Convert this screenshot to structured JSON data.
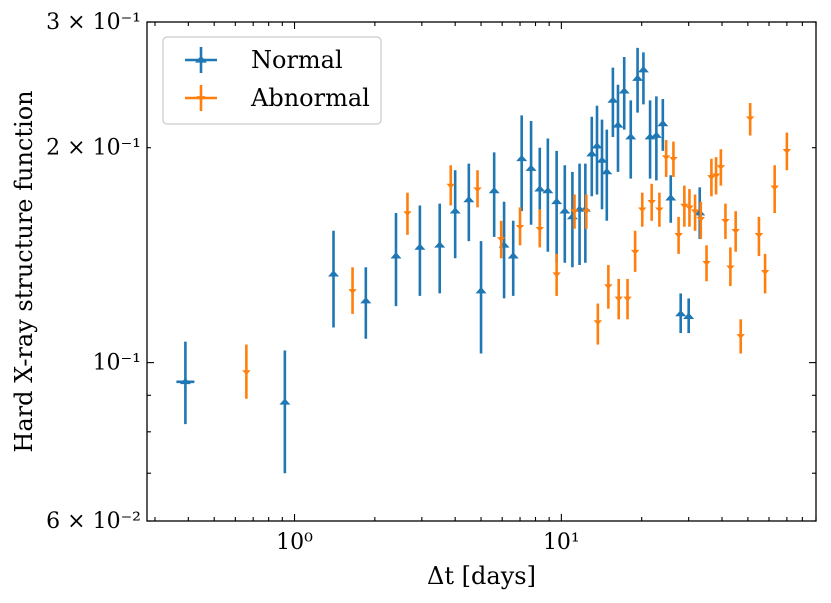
{
  "chart_data": {
    "type": "scatter",
    "title": "",
    "xlabel": "Δt [days]",
    "ylabel": "Hard X-ray structure function",
    "xscale": "log",
    "yscale": "log",
    "xlim": [
      0.28,
      90
    ],
    "ylim": [
      0.06,
      0.3
    ],
    "x_ticks": [
      {
        "value": 1,
        "label": "10⁰"
      },
      {
        "value": 10,
        "label": "10¹"
      }
    ],
    "y_ticks": [
      {
        "value": 0.06,
        "label": "6 × 10⁻²"
      },
      {
        "value": 0.1,
        "label": "10⁻¹"
      },
      {
        "value": 0.2,
        "label": "2 × 10⁻¹"
      },
      {
        "value": 0.3,
        "label": "3 × 10⁻¹"
      }
    ],
    "grid": false,
    "legend_position": "top-left",
    "series": [
      {
        "name": "Normal",
        "color": "#1f77b4",
        "marker": "triangle-up",
        "points": [
          {
            "x": 0.39,
            "y": 0.094,
            "ylo": 0.082,
            "yhi": 0.107
          },
          {
            "x": 0.92,
            "y": 0.088,
            "ylo": 0.07,
            "yhi": 0.104
          },
          {
            "x": 1.4,
            "y": 0.133,
            "ylo": 0.112,
            "yhi": 0.153
          },
          {
            "x": 1.85,
            "y": 0.122,
            "ylo": 0.108,
            "yhi": 0.136
          },
          {
            "x": 2.4,
            "y": 0.141,
            "ylo": 0.12,
            "yhi": 0.162
          },
          {
            "x": 2.95,
            "y": 0.145,
            "ylo": 0.124,
            "yhi": 0.166
          },
          {
            "x": 3.5,
            "y": 0.146,
            "ylo": 0.125,
            "yhi": 0.167
          },
          {
            "x": 4.0,
            "y": 0.163,
            "ylo": 0.14,
            "yhi": 0.186
          },
          {
            "x": 4.5,
            "y": 0.169,
            "ylo": 0.148,
            "yhi": 0.19
          },
          {
            "x": 5.0,
            "y": 0.126,
            "ylo": 0.103,
            "yhi": 0.148
          },
          {
            "x": 5.6,
            "y": 0.174,
            "ylo": 0.15,
            "yhi": 0.197
          },
          {
            "x": 6.1,
            "y": 0.146,
            "ylo": 0.123,
            "yhi": 0.168
          },
          {
            "x": 6.6,
            "y": 0.141,
            "ylo": 0.124,
            "yhi": 0.158
          },
          {
            "x": 7.1,
            "y": 0.193,
            "ylo": 0.163,
            "yhi": 0.222
          },
          {
            "x": 7.7,
            "y": 0.187,
            "ylo": 0.156,
            "yhi": 0.218
          },
          {
            "x": 8.3,
            "y": 0.175,
            "ylo": 0.15,
            "yhi": 0.2
          },
          {
            "x": 8.9,
            "y": 0.174,
            "ylo": 0.143,
            "yhi": 0.206
          },
          {
            "x": 9.6,
            "y": 0.168,
            "ylo": 0.138,
            "yhi": 0.198
          },
          {
            "x": 10.3,
            "y": 0.163,
            "ylo": 0.138,
            "yhi": 0.189
          },
          {
            "x": 11.0,
            "y": 0.16,
            "ylo": 0.136,
            "yhi": 0.185
          },
          {
            "x": 11.7,
            "y": 0.164,
            "ylo": 0.137,
            "yhi": 0.19
          },
          {
            "x": 12.3,
            "y": 0.164,
            "ylo": 0.138,
            "yhi": 0.19
          },
          {
            "x": 13.0,
            "y": 0.196,
            "ylo": 0.171,
            "yhi": 0.221
          },
          {
            "x": 13.6,
            "y": 0.201,
            "ylo": 0.172,
            "yhi": 0.229
          },
          {
            "x": 14.2,
            "y": 0.192,
            "ylo": 0.164,
            "yhi": 0.219
          },
          {
            "x": 14.8,
            "y": 0.185,
            "ylo": 0.158,
            "yhi": 0.212
          },
          {
            "x": 15.6,
            "y": 0.233,
            "ylo": 0.207,
            "yhi": 0.259
          },
          {
            "x": 16.3,
            "y": 0.215,
            "ylo": 0.185,
            "yhi": 0.245
          },
          {
            "x": 17.2,
            "y": 0.24,
            "ylo": 0.212,
            "yhi": 0.268
          },
          {
            "x": 18.2,
            "y": 0.207,
            "ylo": 0.181,
            "yhi": 0.233
          },
          {
            "x": 19.3,
            "y": 0.25,
            "ylo": 0.224,
            "yhi": 0.276
          },
          {
            "x": 20.3,
            "y": 0.257,
            "ylo": 0.23,
            "yhi": 0.272
          },
          {
            "x": 21.5,
            "y": 0.207,
            "ylo": 0.181,
            "yhi": 0.233
          },
          {
            "x": 22.7,
            "y": 0.208,
            "ylo": 0.18,
            "yhi": 0.236
          },
          {
            "x": 24.0,
            "y": 0.216,
            "ylo": 0.198,
            "yhi": 0.234
          },
          {
            "x": 25.7,
            "y": 0.17,
            "ylo": 0.157,
            "yhi": 0.183
          },
          {
            "x": 28.0,
            "y": 0.117,
            "ylo": 0.11,
            "yhi": 0.125
          },
          {
            "x": 30.0,
            "y": 0.116,
            "ylo": 0.11,
            "yhi": 0.123
          },
          {
            "x": 33.0,
            "y": 0.162,
            "ylo": 0.149,
            "yhi": 0.176
          }
        ]
      },
      {
        "name": "Abnormal",
        "color": "#ff7f0e",
        "marker": "triangle-down",
        "points": [
          {
            "x": 0.66,
            "y": 0.097,
            "ylo": 0.089,
            "yhi": 0.106
          },
          {
            "x": 1.65,
            "y": 0.126,
            "ylo": 0.117,
            "yhi": 0.136
          },
          {
            "x": 2.65,
            "y": 0.162,
            "ylo": 0.151,
            "yhi": 0.173
          },
          {
            "x": 3.85,
            "y": 0.177,
            "ylo": 0.166,
            "yhi": 0.189
          },
          {
            "x": 4.85,
            "y": 0.175,
            "ylo": 0.165,
            "yhi": 0.186
          },
          {
            "x": 5.95,
            "y": 0.149,
            "ylo": 0.14,
            "yhi": 0.158
          },
          {
            "x": 7.0,
            "y": 0.155,
            "ylo": 0.146,
            "yhi": 0.165
          },
          {
            "x": 8.3,
            "y": 0.154,
            "ylo": 0.145,
            "yhi": 0.164
          },
          {
            "x": 9.6,
            "y": 0.133,
            "ylo": 0.124,
            "yhi": 0.142
          },
          {
            "x": 11.2,
            "y": 0.163,
            "ylo": 0.154,
            "yhi": 0.172
          },
          {
            "x": 12.4,
            "y": 0.163,
            "ylo": 0.154,
            "yhi": 0.172
          },
          {
            "x": 13.7,
            "y": 0.114,
            "ylo": 0.106,
            "yhi": 0.121
          },
          {
            "x": 15.0,
            "y": 0.128,
            "ylo": 0.119,
            "yhi": 0.137
          },
          {
            "x": 16.4,
            "y": 0.123,
            "ylo": 0.115,
            "yhi": 0.131
          },
          {
            "x": 17.7,
            "y": 0.123,
            "ylo": 0.115,
            "yhi": 0.131
          },
          {
            "x": 18.9,
            "y": 0.143,
            "ylo": 0.134,
            "yhi": 0.153
          },
          {
            "x": 20.1,
            "y": 0.164,
            "ylo": 0.155,
            "yhi": 0.173
          },
          {
            "x": 21.8,
            "y": 0.168,
            "ylo": 0.158,
            "yhi": 0.178
          },
          {
            "x": 23.3,
            "y": 0.164,
            "ylo": 0.155,
            "yhi": 0.173
          },
          {
            "x": 24.7,
            "y": 0.194,
            "ylo": 0.182,
            "yhi": 0.205
          },
          {
            "x": 26.3,
            "y": 0.193,
            "ylo": 0.182,
            "yhi": 0.204
          },
          {
            "x": 27.5,
            "y": 0.151,
            "ylo": 0.142,
            "yhi": 0.16
          },
          {
            "x": 28.9,
            "y": 0.166,
            "ylo": 0.155,
            "yhi": 0.177
          },
          {
            "x": 30.2,
            "y": 0.165,
            "ylo": 0.155,
            "yhi": 0.175
          },
          {
            "x": 31.7,
            "y": 0.163,
            "ylo": 0.153,
            "yhi": 0.172
          },
          {
            "x": 33.3,
            "y": 0.159,
            "ylo": 0.149,
            "yhi": 0.168
          },
          {
            "x": 35.0,
            "y": 0.138,
            "ylo": 0.13,
            "yhi": 0.146
          },
          {
            "x": 36.5,
            "y": 0.182,
            "ylo": 0.171,
            "yhi": 0.193
          },
          {
            "x": 38.0,
            "y": 0.183,
            "ylo": 0.172,
            "yhi": 0.194
          },
          {
            "x": 39.6,
            "y": 0.188,
            "ylo": 0.177,
            "yhi": 0.199
          },
          {
            "x": 41.2,
            "y": 0.158,
            "ylo": 0.149,
            "yhi": 0.167
          },
          {
            "x": 43.0,
            "y": 0.136,
            "ylo": 0.128,
            "yhi": 0.145
          },
          {
            "x": 45.0,
            "y": 0.153,
            "ylo": 0.143,
            "yhi": 0.163
          },
          {
            "x": 47.0,
            "y": 0.109,
            "ylo": 0.103,
            "yhi": 0.115
          },
          {
            "x": 51.0,
            "y": 0.22,
            "ylo": 0.208,
            "yhi": 0.231
          },
          {
            "x": 55.0,
            "y": 0.151,
            "ylo": 0.141,
            "yhi": 0.16
          },
          {
            "x": 58.0,
            "y": 0.134,
            "ylo": 0.125,
            "yhi": 0.142
          },
          {
            "x": 63.0,
            "y": 0.176,
            "ylo": 0.162,
            "yhi": 0.189
          },
          {
            "x": 70.0,
            "y": 0.198,
            "ylo": 0.186,
            "yhi": 0.21
          }
        ]
      }
    ]
  }
}
